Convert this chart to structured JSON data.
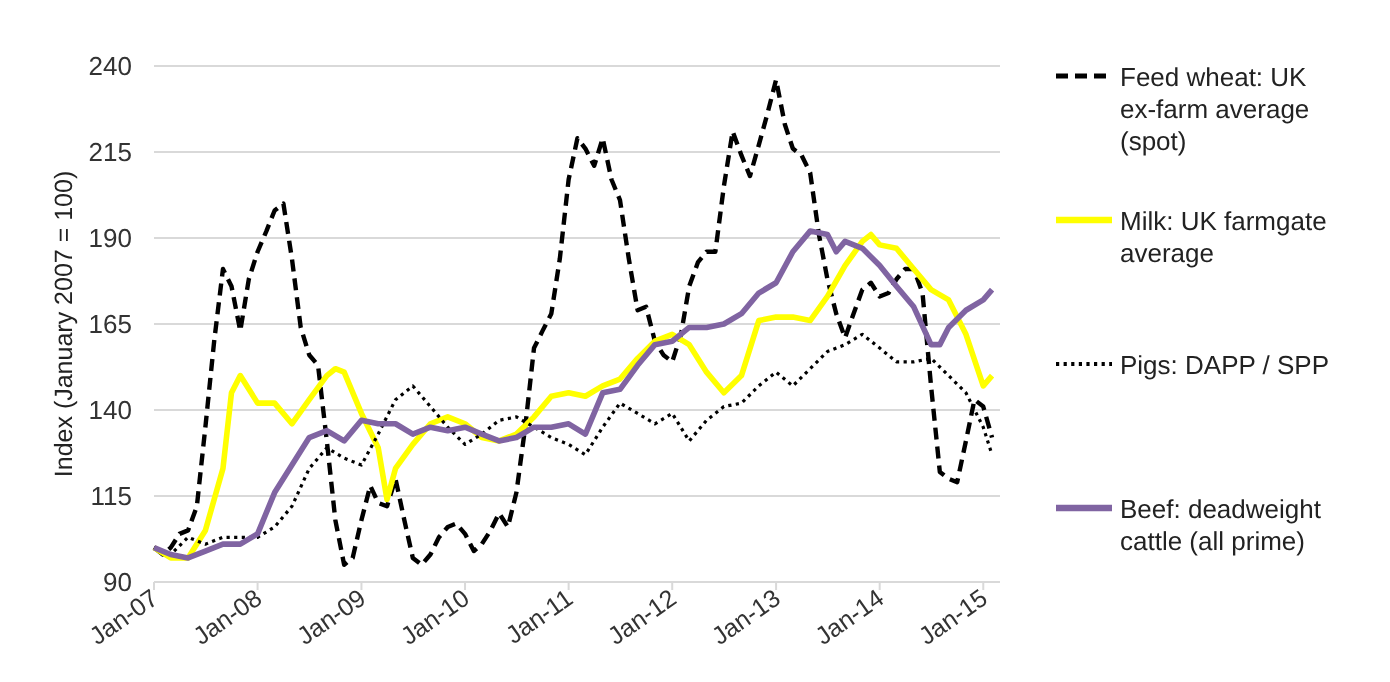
{
  "chart_data": {
    "type": "line",
    "ylabel": "Index (January 2007 = 100)",
    "x": [
      "2007-01",
      "2007-02",
      "2007-03",
      "2007-04",
      "2007-05",
      "2007-06",
      "2007-07",
      "2007-08",
      "2007-09",
      "2007-10",
      "2007-11",
      "2007-12",
      "2008-01",
      "2008-02",
      "2008-03",
      "2008-04",
      "2008-05",
      "2008-06",
      "2008-07",
      "2008-08",
      "2008-09",
      "2008-10",
      "2008-11",
      "2008-12",
      "2009-01",
      "2009-02",
      "2009-03",
      "2009-04",
      "2009-05",
      "2009-06",
      "2009-07",
      "2009-08",
      "2009-09",
      "2009-10",
      "2009-11",
      "2009-12",
      "2010-01",
      "2010-02",
      "2010-03",
      "2010-04",
      "2010-05",
      "2010-06",
      "2010-07",
      "2010-08",
      "2010-09",
      "2010-10",
      "2010-11",
      "2010-12",
      "2011-01",
      "2011-02",
      "2011-03",
      "2011-04",
      "2011-05",
      "2011-06",
      "2011-07",
      "2011-08",
      "2011-09",
      "2011-10",
      "2011-11",
      "2011-12",
      "2012-01",
      "2012-02",
      "2012-03",
      "2012-04",
      "2012-05",
      "2012-06",
      "2012-07",
      "2012-08",
      "2012-09",
      "2012-10",
      "2012-11",
      "2012-12",
      "2013-01",
      "2013-02",
      "2013-03",
      "2013-04",
      "2013-05",
      "2013-06",
      "2013-07",
      "2013-08",
      "2013-09",
      "2013-10",
      "2013-11",
      "2013-12",
      "2014-01",
      "2014-02",
      "2014-03",
      "2014-04",
      "2014-05",
      "2014-06",
      "2014-07",
      "2014-08",
      "2014-09",
      "2014-10",
      "2014-11",
      "2014-12",
      "2015-01",
      "2015-02"
    ],
    "series": [
      {
        "name": "Feed wheat: UK ex-farm average (spot)",
        "color": "#000000",
        "line_style": "dashed",
        "values": [
          100,
          98,
          100,
          104,
          105,
          112,
          135,
          160,
          181,
          176,
          163,
          178,
          186,
          192,
          198,
          200,
          184,
          164,
          156,
          153,
          131,
          108,
          95,
          97,
          108,
          118,
          113,
          112,
          120,
          108,
          97,
          95,
          98,
          103,
          106,
          107,
          104,
          99,
          101,
          105,
          110,
          106,
          116,
          135,
          158,
          163,
          168,
          184,
          207,
          219,
          216,
          211,
          219,
          207,
          201,
          184,
          169,
          170,
          160,
          156,
          154,
          162,
          176,
          183,
          186,
          186,
          205,
          221,
          214,
          208,
          217,
          226,
          236,
          223,
          216,
          214,
          209,
          191,
          178,
          168,
          161,
          168,
          175,
          177,
          173,
          174,
          178,
          181,
          181,
          174,
          147,
          122,
          120,
          119,
          131,
          143,
          141,
          132
        ]
      },
      {
        "name": "Milk: UK farmgate average",
        "color": "#ffff00",
        "line_style": "solid",
        "x": [
          "2007-01",
          "2007-03",
          "2007-05",
          "2007-07",
          "2007-09",
          "2007-10",
          "2007-11",
          "2008-01",
          "2008-03",
          "2008-05",
          "2008-07",
          "2008-09",
          "2008-10",
          "2008-11",
          "2009-01",
          "2009-03",
          "2009-04",
          "2009-05",
          "2009-07",
          "2009-09",
          "2009-11",
          "2010-01",
          "2010-03",
          "2010-05",
          "2010-07",
          "2010-09",
          "2010-11",
          "2011-01",
          "2011-03",
          "2011-05",
          "2011-07",
          "2011-09",
          "2011-11",
          "2012-01",
          "2012-03",
          "2012-05",
          "2012-07",
          "2012-09",
          "2012-11",
          "2013-01",
          "2013-03",
          "2013-05",
          "2013-07",
          "2013-09",
          "2013-11",
          "2013-12",
          "2014-01",
          "2014-03",
          "2014-05",
          "2014-07",
          "2014-09",
          "2014-11",
          "2015-01",
          "2015-02"
        ],
        "values": [
          100,
          97,
          97,
          105,
          123,
          145,
          150,
          142,
          142,
          136,
          143,
          150,
          152,
          151,
          139,
          129,
          114,
          123,
          130,
          136,
          138,
          136,
          132,
          131,
          133,
          138,
          144,
          145,
          144,
          147,
          149,
          155,
          160,
          162,
          159,
          151,
          145,
          150,
          166,
          167,
          167,
          166,
          173,
          182,
          189,
          191,
          188,
          187,
          181,
          175,
          172,
          162,
          147,
          150
        ]
      },
      {
        "name": "Pigs: DAPP / SPP",
        "color": "#000000",
        "line_style": "dotted",
        "x": [
          "2007-01",
          "2007-03",
          "2007-05",
          "2007-07",
          "2007-09",
          "2007-11",
          "2008-01",
          "2008-03",
          "2008-05",
          "2008-07",
          "2008-09",
          "2008-11",
          "2009-01",
          "2009-03",
          "2009-05",
          "2009-07",
          "2009-09",
          "2009-11",
          "2010-01",
          "2010-03",
          "2010-05",
          "2010-07",
          "2010-09",
          "2010-11",
          "2011-01",
          "2011-03",
          "2011-05",
          "2011-07",
          "2011-09",
          "2011-11",
          "2012-01",
          "2012-03",
          "2012-05",
          "2012-07",
          "2012-09",
          "2012-11",
          "2013-01",
          "2013-03",
          "2013-05",
          "2013-07",
          "2013-09",
          "2013-11",
          "2014-01",
          "2014-03",
          "2014-05",
          "2014-07",
          "2014-09",
          "2014-11",
          "2015-01",
          "2015-02"
        ],
        "values": [
          100,
          98,
          103,
          101,
          103,
          103,
          103,
          106,
          112,
          123,
          129,
          126,
          124,
          133,
          143,
          147,
          141,
          135,
          130,
          133,
          137,
          138,
          135,
          132,
          130,
          127,
          135,
          142,
          139,
          136,
          139,
          131,
          137,
          141,
          142,
          147,
          151,
          147,
          152,
          157,
          159,
          162,
          158,
          154,
          154,
          155,
          150,
          145,
          135,
          127
        ]
      },
      {
        "name": "Beef: deadweight cattle (all prime)",
        "color": "#8064a2",
        "line_style": "solid",
        "x": [
          "2007-01",
          "2007-03",
          "2007-05",
          "2007-07",
          "2007-09",
          "2007-11",
          "2008-01",
          "2008-03",
          "2008-05",
          "2008-07",
          "2008-09",
          "2008-11",
          "2009-01",
          "2009-03",
          "2009-05",
          "2009-07",
          "2009-09",
          "2009-11",
          "2010-01",
          "2010-03",
          "2010-05",
          "2010-07",
          "2010-09",
          "2010-11",
          "2011-01",
          "2011-03",
          "2011-05",
          "2011-07",
          "2011-09",
          "2011-11",
          "2012-01",
          "2012-03",
          "2012-05",
          "2012-07",
          "2012-09",
          "2012-11",
          "2013-01",
          "2013-03",
          "2013-05",
          "2013-07",
          "2013-08",
          "2013-09",
          "2013-11",
          "2014-01",
          "2014-03",
          "2014-05",
          "2014-07",
          "2014-08",
          "2014-09",
          "2014-11",
          "2015-01",
          "2015-02"
        ],
        "values": [
          100,
          98,
          97,
          99,
          101,
          101,
          104,
          116,
          124,
          132,
          134,
          131,
          137,
          136,
          136,
          133,
          135,
          134,
          135,
          133,
          131,
          132,
          135,
          135,
          136,
          133,
          145,
          146,
          153,
          159,
          160,
          164,
          164,
          165,
          168,
          174,
          177,
          186,
          192,
          191,
          186,
          189,
          187,
          182,
          176,
          170,
          159,
          159,
          164,
          169,
          172,
          175
        ]
      }
    ],
    "xlim": [
      "2007-01",
      "2015-03"
    ],
    "xticks": [
      {
        "value": "2007-01",
        "label": "Jan-07"
      },
      {
        "value": "2008-01",
        "label": "Jan-08"
      },
      {
        "value": "2009-01",
        "label": "Jan-09"
      },
      {
        "value": "2010-01",
        "label": "Jan-10"
      },
      {
        "value": "2011-01",
        "label": "Jan-11"
      },
      {
        "value": "2012-01",
        "label": "Jan-12"
      },
      {
        "value": "2013-01",
        "label": "Jan-13"
      },
      {
        "value": "2014-01",
        "label": "Jan-14"
      },
      {
        "value": "2015-01",
        "label": "Jan-15"
      }
    ],
    "ylim": [
      90,
      240
    ],
    "yticks": [
      90,
      115,
      140,
      165,
      190,
      215,
      240
    ],
    "grid": "y",
    "legend": "right",
    "marker": "none"
  }
}
